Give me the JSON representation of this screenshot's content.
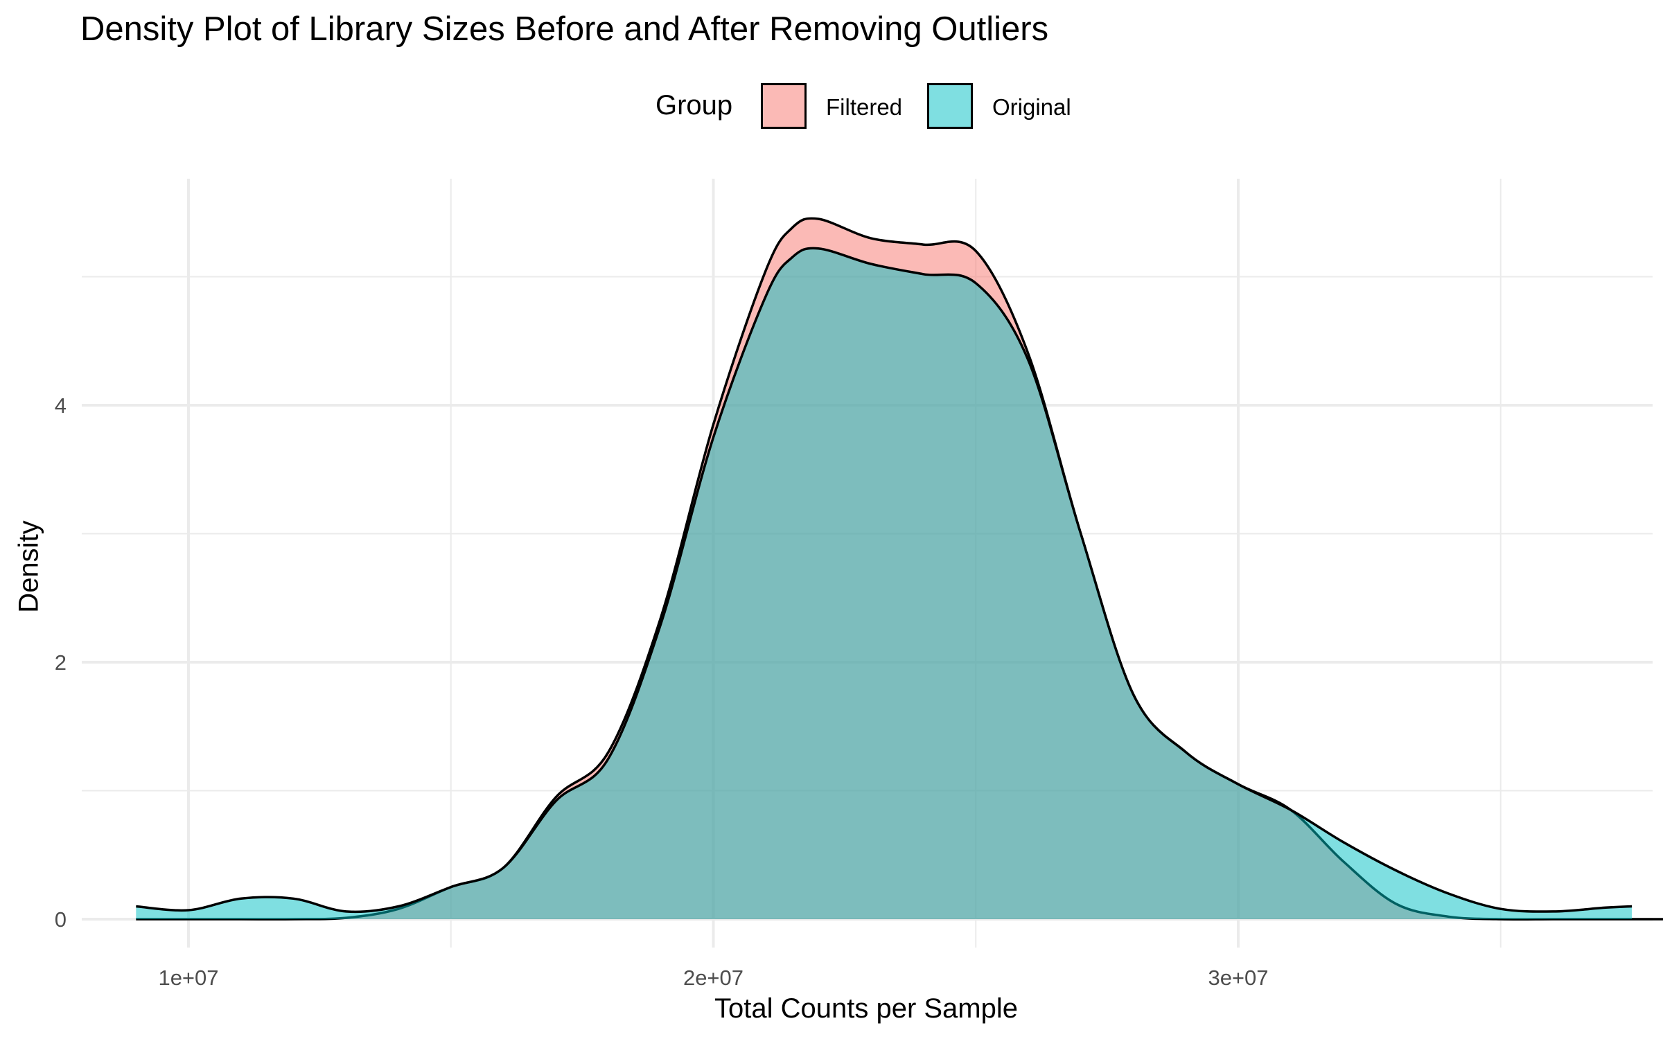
{
  "chart_data": {
    "type": "area",
    "title": "Density Plot of Library Sizes Before and After Removing Outliers",
    "xlabel": "Total Counts per Sample",
    "ylabel": "Density",
    "xlim": [
      9000000,
      40000000
    ],
    "ylim": [
      0,
      5.6
    ],
    "x_ticks": [
      10000000,
      20000000,
      30000000
    ],
    "x_tick_labels": [
      "1e+07",
      "2e+07",
      "3e+07"
    ],
    "y_ticks": [
      0,
      2,
      4
    ],
    "y_tick_labels": [
      "0",
      "2",
      "4"
    ],
    "grid": true,
    "legend_title": "Group",
    "legend_position": "top",
    "series": [
      {
        "name": "Filtered",
        "color": "#F8766D",
        "points": [
          [
            9000000,
            0
          ],
          [
            10000000,
            0
          ],
          [
            11000000,
            0
          ],
          [
            12000000,
            0
          ],
          [
            13000000,
            0.01
          ],
          [
            14000000,
            0.08
          ],
          [
            15000000,
            0.25
          ],
          [
            16000000,
            0.4
          ],
          [
            17000000,
            0.95
          ],
          [
            18000000,
            1.3
          ],
          [
            19000000,
            2.35
          ],
          [
            20000000,
            3.85
          ],
          [
            21000000,
            5.05
          ],
          [
            21500000,
            5.38
          ],
          [
            22000000,
            5.45
          ],
          [
            23000000,
            5.3
          ],
          [
            24000000,
            5.25
          ],
          [
            25000000,
            5.2
          ],
          [
            26000000,
            4.4
          ],
          [
            27000000,
            3.0
          ],
          [
            28000000,
            1.75
          ],
          [
            29000000,
            1.3
          ],
          [
            30000000,
            1.05
          ],
          [
            31000000,
            0.85
          ],
          [
            32000000,
            0.45
          ],
          [
            33000000,
            0.12
          ],
          [
            34000000,
            0.02
          ],
          [
            35000000,
            0
          ],
          [
            36000000,
            0
          ],
          [
            37000000,
            0
          ],
          [
            38000000,
            0
          ],
          [
            39000000,
            0
          ],
          [
            40000000,
            0
          ]
        ]
      },
      {
        "name": "Original",
        "color": "#00BFC4",
        "points": [
          [
            9000000,
            0.1
          ],
          [
            10000000,
            0.07
          ],
          [
            11000000,
            0.16
          ],
          [
            12000000,
            0.16
          ],
          [
            13000000,
            0.06
          ],
          [
            14000000,
            0.1
          ],
          [
            15000000,
            0.25
          ],
          [
            16000000,
            0.4
          ],
          [
            17000000,
            0.92
          ],
          [
            18000000,
            1.25
          ],
          [
            19000000,
            2.3
          ],
          [
            20000000,
            3.75
          ],
          [
            21000000,
            4.85
          ],
          [
            21500000,
            5.15
          ],
          [
            22000000,
            5.22
          ],
          [
            23000000,
            5.1
          ],
          [
            24000000,
            5.02
          ],
          [
            25000000,
            4.95
          ],
          [
            26000000,
            4.35
          ],
          [
            27000000,
            3.0
          ],
          [
            28000000,
            1.75
          ],
          [
            29000000,
            1.3
          ],
          [
            30000000,
            1.05
          ],
          [
            31000000,
            0.85
          ],
          [
            32000000,
            0.6
          ],
          [
            33000000,
            0.38
          ],
          [
            34000000,
            0.2
          ],
          [
            35000000,
            0.08
          ],
          [
            36000000,
            0.06
          ],
          [
            37000000,
            0.09
          ],
          [
            37500000,
            0.1
          ]
        ]
      }
    ]
  }
}
